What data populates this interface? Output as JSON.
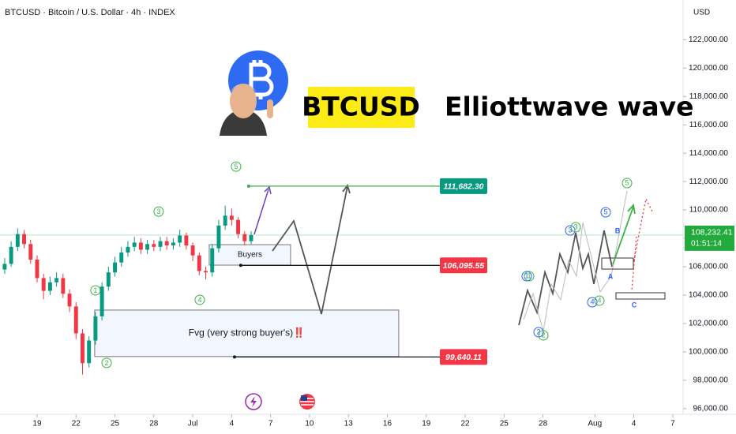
{
  "header": {
    "badge": "BTCUSD",
    "headline": "Elliottwave wave"
  },
  "chart_data": {
    "type": "candlestick",
    "title": "BTCUSD · Bitcoin / U.S. Dollar · 4h · INDEX",
    "currency": "USD",
    "up_color": "#089981",
    "down_color": "#f23645",
    "x": [
      -2.5,
      -2,
      -1.5,
      -1,
      -0.5,
      0,
      0.5,
      1,
      1.5,
      2,
      2.5,
      3,
      3.5,
      4,
      4.5,
      5,
      5.5,
      6,
      6.5,
      7,
      7.5,
      8,
      8.5,
      9,
      9.5,
      10,
      10.5,
      11,
      11.5,
      12,
      12.5,
      13,
      13.5,
      14,
      14.5,
      15,
      15.5,
      16,
      16.5
    ],
    "open": [
      105800,
      106200,
      107400,
      108300,
      107600,
      106500,
      105200,
      104300,
      104900,
      105200,
      104100,
      103200,
      101300,
      99200,
      100800,
      102500,
      104600,
      105600,
      106300,
      107000,
      107400,
      107700,
      107200,
      107600,
      107400,
      107800,
      107500,
      107700,
      108200,
      107500,
      106800,
      105700,
      105600,
      107300,
      108900,
      109600,
      109300,
      108300,
      107800
    ],
    "high": [
      106600,
      107800,
      108700,
      108600,
      107900,
      106800,
      105500,
      105300,
      105600,
      105500,
      104400,
      103500,
      101600,
      101100,
      102800,
      104900,
      106000,
      106700,
      107400,
      107800,
      108100,
      108000,
      107900,
      107900,
      108100,
      108100,
      108000,
      108600,
      108400,
      107700,
      107000,
      106000,
      107600,
      109300,
      110300,
      110100,
      109500,
      108500,
      108500
    ],
    "low": [
      105500,
      106000,
      107100,
      107300,
      106200,
      104900,
      103700,
      104000,
      104600,
      103800,
      102800,
      100900,
      98400,
      98900,
      100500,
      102200,
      104300,
      105300,
      106000,
      106700,
      107100,
      106900,
      106900,
      107100,
      107100,
      107200,
      107200,
      107400,
      107200,
      106400,
      105400,
      105100,
      105300,
      107000,
      108600,
      108900,
      108000,
      107500,
      107600
    ],
    "close": [
      106200,
      107400,
      108300,
      107600,
      106500,
      105200,
      104300,
      104900,
      105200,
      104100,
      103200,
      101300,
      99200,
      100800,
      102500,
      104600,
      105600,
      106300,
      107000,
      107400,
      107700,
      107200,
      107600,
      107400,
      107800,
      107500,
      107700,
      108200,
      107500,
      106800,
      105700,
      105600,
      107300,
      108900,
      109600,
      109300,
      108300,
      107800,
      108232.41
    ],
    "xlim": [
      -2.86,
      49.8
    ],
    "xticks": [
      {
        "value": 0,
        "label": "19"
      },
      {
        "value": 3,
        "label": "22"
      },
      {
        "value": 6,
        "label": "25"
      },
      {
        "value": 9,
        "label": "28"
      },
      {
        "value": 12,
        "label": "Jul"
      },
      {
        "value": 15,
        "label": "4"
      },
      {
        "value": 18,
        "label": "7"
      },
      {
        "value": 21,
        "label": "10"
      },
      {
        "value": 24,
        "label": "13"
      },
      {
        "value": 27,
        "label": "16"
      },
      {
        "value": 30,
        "label": "19"
      },
      {
        "value": 33,
        "label": "22"
      },
      {
        "value": 36,
        "label": "25"
      },
      {
        "value": 39,
        "label": "28"
      },
      {
        "value": 43,
        "label": "Aug"
      },
      {
        "value": 46,
        "label": "4"
      },
      {
        "value": 49,
        "label": "7"
      }
    ],
    "ylim": [
      95600,
      124800
    ],
    "yticks": [
      {
        "value": 96000,
        "label": "96,000.00"
      },
      {
        "value": 98000,
        "label": "98,000.00"
      },
      {
        "value": 100000,
        "label": "100,000.00"
      },
      {
        "value": 102000,
        "label": "102,000.00"
      },
      {
        "value": 104000,
        "label": "104,000.00"
      },
      {
        "value": 106000,
        "label": "106,000.00"
      },
      {
        "value": 108000,
        "label": "108,000.00"
      },
      {
        "value": 110000,
        "label": "110,000.00"
      },
      {
        "value": 112000,
        "label": "112,000.00"
      },
      {
        "value": 114000,
        "label": "114,000.00"
      },
      {
        "value": 116000,
        "label": "116,000.00"
      },
      {
        "value": 118000,
        "label": "118,000.00"
      },
      {
        "value": 120000,
        "label": "120,000.00"
      },
      {
        "value": 122000,
        "label": "122,000.00"
      }
    ],
    "last_price": {
      "value": 108232.41,
      "label": "108,232.41"
    },
    "countdown": "01:51:14",
    "levels": [
      {
        "value": 111682.3,
        "label": "111,682.30",
        "color": "#089981",
        "from": 16.31
      },
      {
        "value": 106095.55,
        "label": "106,095.55",
        "color": "#f23645",
        "from": 15.7
      },
      {
        "value": 99640.11,
        "label": "99,640.11",
        "color": "#f23645",
        "from": 15.22
      }
    ],
    "zones": [
      {
        "label": "Buyers",
        "start": 13.27,
        "end": 19.54,
        "top": 107556,
        "bottom": 106111
      },
      {
        "label": "Fvg (very strong buyer's)‼️",
        "start": 4.44,
        "end": 27.88,
        "top": 102944,
        "bottom": 99667
      }
    ],
    "waves": [
      {
        "label": "5",
        "x": 15.34,
        "y": 113056
      },
      {
        "label": "3",
        "x": 9.37,
        "y": 109889
      },
      {
        "label": "1",
        "x": 4.5,
        "y": 104333
      },
      {
        "label": "4",
        "x": 12.54,
        "y": 103667
      },
      {
        "label": "2",
        "x": 5.36,
        "y": 99222
      }
    ]
  },
  "schematic": {
    "labels": [
      "1",
      "2",
      "3",
      "4",
      "5",
      "1",
      "2",
      "3",
      "4",
      "5",
      "A",
      "B",
      "C"
    ]
  }
}
